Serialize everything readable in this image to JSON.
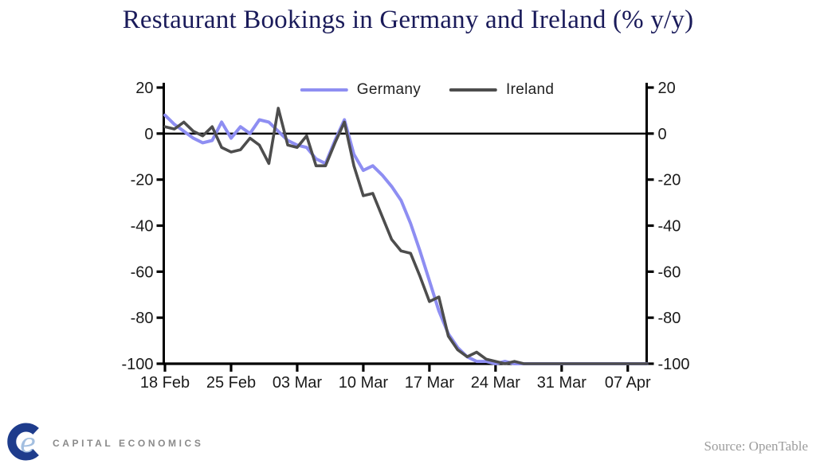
{
  "title": "Restaurant Bookings in Germany and Ireland (% y/y)",
  "axes": {
    "y_tick_labels_left": [
      "20",
      "0",
      "-20",
      "-40",
      "-60",
      "-80",
      "-100"
    ],
    "y_tick_labels_right": [
      "20",
      "0",
      "-20",
      "-40",
      "-60",
      "-80",
      "-100"
    ],
    "x_tick_labels": [
      "18 Feb",
      "25 Feb",
      "03 Mar",
      "10 Mar",
      "17 Mar",
      "24 Mar",
      "31 Mar",
      "07 Apr"
    ]
  },
  "chart_data": {
    "type": "line",
    "title": "Restaurant Bookings in Germany and Ireland (% y/y)",
    "ylabel": "% y/y",
    "ylim": [
      -100,
      20
    ],
    "y_ticks": [
      20,
      0,
      -20,
      -40,
      -60,
      -80,
      -100
    ],
    "x_tick_labels": [
      "18 Feb",
      "25 Feb",
      "03 Mar",
      "10 Mar",
      "17 Mar",
      "24 Mar",
      "31 Mar",
      "07 Apr"
    ],
    "x_tick_indices": [
      0,
      7,
      14,
      21,
      28,
      35,
      42,
      49
    ],
    "x_unit": "daily observations starting 18 Feb",
    "n_points": 52,
    "zero_line": true,
    "grid": false,
    "legend_position": "top-center",
    "series": [
      {
        "name": "Germany",
        "color": "#8e8ef2",
        "values": [
          8,
          4,
          1,
          -2,
          -4,
          -3,
          5,
          -2,
          3,
          0,
          6,
          5,
          1,
          -3,
          -5,
          -6,
          -11,
          -13,
          -3,
          6,
          -9,
          -16,
          -14,
          -18,
          -23,
          -29,
          -39,
          -51,
          -64,
          -77,
          -87,
          -93,
          -97,
          -99,
          -99,
          -100,
          -99,
          -100,
          -100,
          -100,
          -100,
          -100,
          -100,
          -100,
          -100,
          -100,
          -100,
          -100,
          -100,
          -100,
          -100,
          -100
        ]
      },
      {
        "name": "Ireland",
        "color": "#4d4d4d",
        "values": [
          3,
          2,
          5,
          1,
          -1,
          3,
          -6,
          -8,
          -7,
          -2,
          -5,
          -13,
          11,
          -5,
          -6,
          -1,
          -14,
          -14,
          -4,
          5,
          -14,
          -27,
          -26,
          -36,
          -46,
          -51,
          -52,
          -62,
          -73,
          -71,
          -88,
          -94,
          -97,
          -95,
          -98,
          -99,
          -100,
          -99,
          -100,
          -100,
          -100,
          -100,
          -100,
          -100,
          -100,
          -100,
          -100,
          -100,
          -100,
          -100,
          -100,
          -100
        ]
      }
    ]
  },
  "footer": {
    "logo_text": "CAPITAL ECONOMICS",
    "source": "Source: OpenTable"
  },
  "colors": {
    "title_text": "#1a1b5a",
    "axis": "#000000",
    "tick_text": "#1a1a1a",
    "germany_line": "#8e8ef2",
    "ireland_line": "#4d4d4d",
    "source_text": "#9c9c9c",
    "logo_navy": "#1e3c8c",
    "logo_light_blue": "#a3bfe0",
    "logo_gray": "#8a8a8a"
  }
}
